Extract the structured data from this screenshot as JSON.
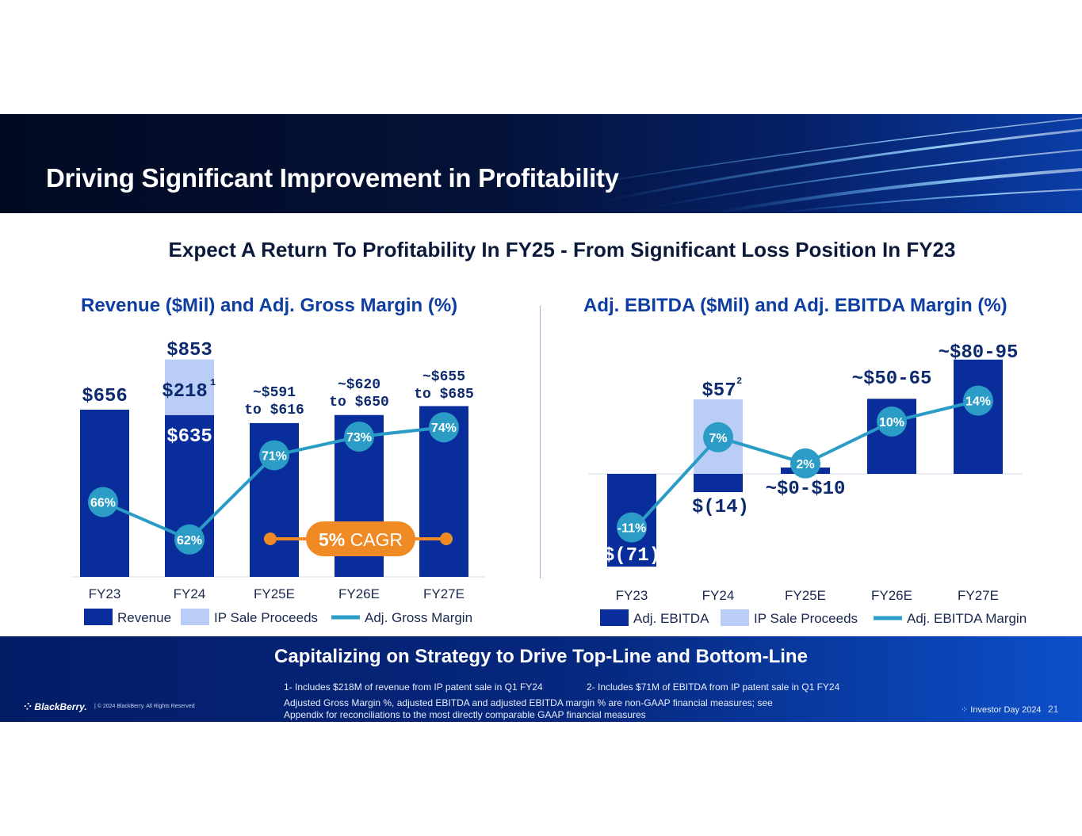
{
  "header": {
    "title": "Driving Significant Improvement in Profitability"
  },
  "subtitle": "Expect A Return To Profitability In FY25 - From Significant Loss Position In FY23",
  "colors": {
    "dark_blue": "#0a2d9c",
    "light_blue": "#b9cdf6",
    "teal": "#2a9cc6",
    "orange": "#f08a24",
    "header_bg": "#041238",
    "footer_bg": "#06287f"
  },
  "chart_data": [
    {
      "type": "bar",
      "title": "Revenue ($Mil) and Adj. Gross Margin (%)",
      "categories": [
        "FY23",
        "FY24",
        "FY25E",
        "FY26E",
        "FY27E"
      ],
      "series": [
        {
          "name": "Revenue",
          "values": [
            656,
            635,
            603.5,
            635,
            670
          ]
        },
        {
          "name": "IP Sale Proceeds",
          "values": [
            0,
            218,
            0,
            0,
            0
          ]
        },
        {
          "name": "Adj. Gross Margin",
          "values": [
            66,
            62,
            71,
            73,
            74
          ],
          "unit": "%"
        }
      ],
      "bar_labels": [
        "$656",
        "$635",
        "~$591\nto $616",
        "~$620\nto $650",
        "~$655\nto $685"
      ],
      "total_label": "$853",
      "ip_label": "$218",
      "ip_footnote": "1",
      "margin_labels": [
        "66%",
        "62%",
        "71%",
        "73%",
        "74%"
      ],
      "cagr_label": {
        "pct": "5%",
        "text": "CAGR"
      },
      "legend": [
        "Revenue",
        "IP Sale Proceeds",
        "Adj. Gross Margin"
      ],
      "ylim": [
        0,
        900
      ]
    },
    {
      "type": "bar",
      "title": "Adj. EBITDA ($Mil) and Adj. EBITDA Margin (%)",
      "categories": [
        "FY23",
        "FY24",
        "FY25E",
        "FY26E",
        "FY27E"
      ],
      "series": [
        {
          "name": "Adj. EBITDA",
          "values": [
            -71,
            -14,
            5,
            57.5,
            87.5
          ]
        },
        {
          "name": "IP Sale Proceeds",
          "values": [
            0,
            71,
            0,
            0,
            0
          ]
        },
        {
          "name": "Adj. EBITDA Margin",
          "values": [
            -11,
            7,
            2,
            10,
            14
          ],
          "unit": "%"
        }
      ],
      "bar_labels": [
        "$(71)",
        "$(14)",
        "~$0-$10",
        "~$50-65",
        "~$80-95"
      ],
      "top_label": "$57",
      "top_footnote": "2",
      "margin_labels": [
        "-11%",
        "7%",
        "2%",
        "10%",
        "14%"
      ],
      "legend": [
        "Adj. EBITDA",
        "IP Sale Proceeds",
        "Adj. EBITDA Margin"
      ],
      "ylim": [
        -80,
        100
      ]
    }
  ],
  "footer": {
    "title": "Capitalizing on Strategy to Drive Top-Line and Bottom-Line",
    "note1": "1- Includes $218M of revenue from IP patent sale in Q1 FY24",
    "note2": "2- Includes $71M of EBITDA from IP patent sale in Q1 FY24",
    "note3": "Adjusted Gross Margin %, adjusted EBITDA and adjusted EBITDA margin % are non-GAAP financial measures; see",
    "note4": "Appendix for reconciliations to the most directly comparable GAAP financial measures",
    "brand": "BlackBerry.",
    "copyright": "| © 2024 BlackBerry. All Rights Reserved",
    "event": "Investor Day 2024",
    "page": "21"
  }
}
